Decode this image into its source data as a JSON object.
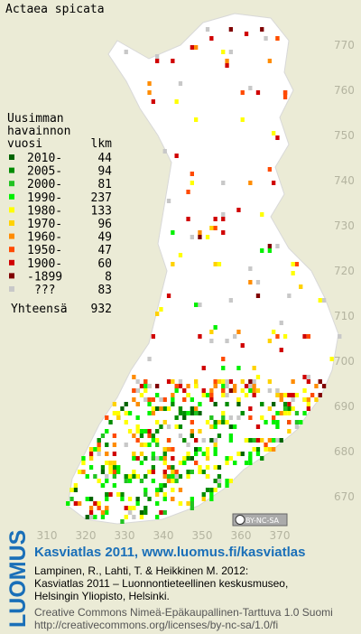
{
  "title": "Actaea spicata",
  "legend": {
    "heading": [
      "Uusimman",
      "havainnon",
      "vuosi"
    ],
    "count_heading": "lkm",
    "rows": [
      {
        "label": "2010-",
        "count": 44,
        "color": "#006400"
      },
      {
        "label": "2005-",
        "count": 94,
        "color": "#008c00"
      },
      {
        "label": "2000-",
        "count": 81,
        "color": "#22c322"
      },
      {
        "label": "1990-",
        "count": 237,
        "color": "#00f000"
      },
      {
        "label": "1980-",
        "count": 133,
        "color": "#ffff00"
      },
      {
        "label": "1970-",
        "count": 96,
        "color": "#ffd200"
      },
      {
        "label": "1960-",
        "count": 49,
        "color": "#ff8c00"
      },
      {
        "label": "1950-",
        "count": 47,
        "color": "#ff4a00"
      },
      {
        "label": "1900-",
        "count": 60,
        "color": "#d00000"
      },
      {
        "label": "-1899",
        "count": 8,
        "color": "#800000"
      },
      {
        "label": "???",
        "count": 83,
        "color": "#c8c8c8"
      }
    ],
    "total_label": "Yhteensä",
    "total": 932
  },
  "xticks": [
    310,
    320,
    330,
    340,
    350,
    360,
    370
  ],
  "yticks": [
    670,
    680,
    690,
    700,
    710,
    720,
    730,
    740,
    750,
    760,
    770
  ],
  "license_badge": "BY-NC-SA",
  "footer": {
    "brand": "LUOMUS",
    "headline": "Kasviatlas 2011, www.luomus.fi/kasviatlas",
    "citation": [
      "Lampinen, R., Lahti, T. & Heikkinen M. 2012:",
      "Kasviatlas 2011 – Luonnontieteellinen keskusmuseo,",
      "Helsingin Yliopisto, Helsinki."
    ],
    "license": [
      "Creative Commons Nimeä-Epäkaupallinen-Tarttuva 1.0 Suomi",
      "http://creativecommons.org/licenses/by-nc-sa/1.0/fi"
    ]
  }
}
